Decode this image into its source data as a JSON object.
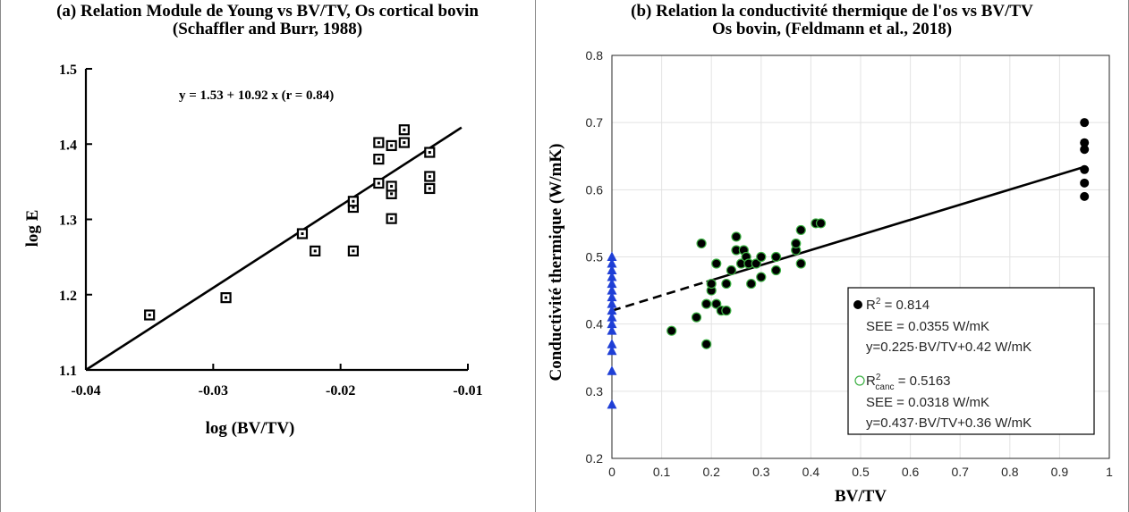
{
  "panel_a": {
    "title_line1": "(a) Relation Module de Young vs BV/TV, Os cortical bovin",
    "title_line2": "(Schaffler and Burr, 1988)"
  },
  "panel_b": {
    "title_line1": "(b) Relation la conductivité thermique de l'os vs BV/TV",
    "title_line2": "Os bovin, (Feldmann et al., 2018)"
  },
  "chart_data": [
    {
      "type": "scatter",
      "xlabel": "log (BV/TV)",
      "ylabel": "log E",
      "xlim": [
        -0.04,
        -0.01
      ],
      "ylim": [
        1.1,
        1.5
      ],
      "x_ticks": [
        -0.04,
        -0.03,
        -0.02,
        -0.01
      ],
      "x_tick_labels": [
        "-0.04",
        "-0.03",
        "-0.02",
        "-0.01"
      ],
      "y_ticks": [
        1.1,
        1.2,
        1.3,
        1.4,
        1.5
      ],
      "y_tick_labels": [
        "1.1",
        "1.2",
        "1.3",
        "1.4",
        "1.5"
      ],
      "grid": false,
      "marker": "open-square",
      "annotation": "y = 1.53 + 10.92 x   (r = 0.84)",
      "series": [
        {
          "points": [
            [
              -0.035,
              1.173
            ],
            [
              -0.029,
              1.196
            ],
            [
              -0.023,
              1.281
            ],
            [
              -0.022,
              1.258
            ],
            [
              -0.019,
              1.258
            ],
            [
              -0.019,
              1.316
            ],
            [
              -0.019,
              1.324
            ],
            [
              -0.017,
              1.348
            ],
            [
              -0.017,
              1.38
            ],
            [
              -0.017,
              1.402
            ],
            [
              -0.016,
              1.301
            ],
            [
              -0.016,
              1.334
            ],
            [
              -0.016,
              1.344
            ],
            [
              -0.016,
              1.398
            ],
            [
              -0.015,
              1.402
            ],
            [
              -0.015,
              1.419
            ],
            [
              -0.013,
              1.341
            ],
            [
              -0.013,
              1.357
            ],
            [
              -0.013,
              1.389
            ]
          ]
        }
      ],
      "fit_line": [
        [
          -0.04,
          1.1
        ],
        [
          -0.0105,
          1.422
        ]
      ]
    },
    {
      "type": "scatter",
      "xlabel": "BV/TV",
      "ylabel": "Conductivité thermique (W/mK)",
      "xlim": [
        0,
        1
      ],
      "ylim": [
        0.2,
        0.8
      ],
      "x_ticks": [
        0,
        0.1,
        0.2,
        0.3,
        0.4,
        0.5,
        0.6,
        0.7,
        0.8,
        0.9,
        1
      ],
      "x_tick_labels": [
        "0",
        "0.1",
        "0.2",
        "0.3",
        "0.4",
        "0.5",
        "0.6",
        "0.7",
        "0.8",
        "0.9",
        "1"
      ],
      "y_ticks": [
        0.2,
        0.3,
        0.4,
        0.5,
        0.6,
        0.7,
        0.8
      ],
      "y_tick_labels": [
        "0.2",
        "0.3",
        "0.4",
        "0.5",
        "0.6",
        "0.7",
        "0.8"
      ],
      "grid": true,
      "series": [
        {
          "marker": "filled-circle",
          "color": "#000000",
          "points": [
            [
              0.95,
              0.7
            ],
            [
              0.95,
              0.67
            ],
            [
              0.95,
              0.66
            ],
            [
              0.95,
              0.63
            ],
            [
              0.95,
              0.61
            ],
            [
              0.95,
              0.59
            ]
          ]
        },
        {
          "marker": "filled-circle-green-edge",
          "color": "#000000",
          "edge_color": "#3cb043",
          "points": [
            [
              0.12,
              0.39
            ],
            [
              0.17,
              0.41
            ],
            [
              0.18,
              0.52
            ],
            [
              0.19,
              0.43
            ],
            [
              0.19,
              0.37
            ],
            [
              0.2,
              0.45
            ],
            [
              0.2,
              0.46
            ],
            [
              0.21,
              0.49
            ],
            [
              0.21,
              0.43
            ],
            [
              0.22,
              0.42
            ],
            [
              0.23,
              0.42
            ],
            [
              0.23,
              0.46
            ],
            [
              0.24,
              0.48
            ],
            [
              0.25,
              0.53
            ],
            [
              0.25,
              0.51
            ],
            [
              0.26,
              0.49
            ],
            [
              0.265,
              0.51
            ],
            [
              0.27,
              0.5
            ],
            [
              0.275,
              0.49
            ],
            [
              0.28,
              0.46
            ],
            [
              0.29,
              0.49
            ],
            [
              0.3,
              0.5
            ],
            [
              0.3,
              0.47
            ],
            [
              0.33,
              0.5
            ],
            [
              0.33,
              0.48
            ],
            [
              0.37,
              0.51
            ],
            [
              0.37,
              0.52
            ],
            [
              0.38,
              0.54
            ],
            [
              0.38,
              0.49
            ],
            [
              0.41,
              0.55
            ],
            [
              0.42,
              0.55
            ]
          ]
        },
        {
          "marker": "triangle-up",
          "color": "#1f3fd6",
          "points": [
            [
              0,
              0.5
            ],
            [
              0,
              0.49
            ],
            [
              0,
              0.48
            ],
            [
              0,
              0.47
            ],
            [
              0,
              0.46
            ],
            [
              0,
              0.45
            ],
            [
              0,
              0.44
            ],
            [
              0,
              0.43
            ],
            [
              0,
              0.42
            ],
            [
              0,
              0.41
            ],
            [
              0,
              0.4
            ],
            [
              0,
              0.39
            ],
            [
              0,
              0.37
            ],
            [
              0,
              0.36
            ],
            [
              0,
              0.33
            ],
            [
              0,
              0.28
            ]
          ]
        }
      ],
      "fit_line_solid": [
        [
          0.19,
          0.463
        ],
        [
          0.95,
          0.634
        ]
      ],
      "fit_line_dashed": [
        [
          0,
          0.42
        ],
        [
          0.19,
          0.463
        ]
      ],
      "legend_box": {
        "line1_base": "R",
        "line1_sup": "2",
        "line1_rest": " = 0.814",
        "line2": "SEE = 0.0355 W/mK",
        "line3": "y=0.225·BV/TV+0.42 W/mK",
        "line4_base": "R",
        "line4_sup": "2",
        "line4_sub": "canc",
        "line4_rest": " = 0.5163",
        "line5": "SEE = 0.0318 W/mK",
        "line6": "y=0.437·BV/TV+0.36 W/mK"
      }
    }
  ]
}
